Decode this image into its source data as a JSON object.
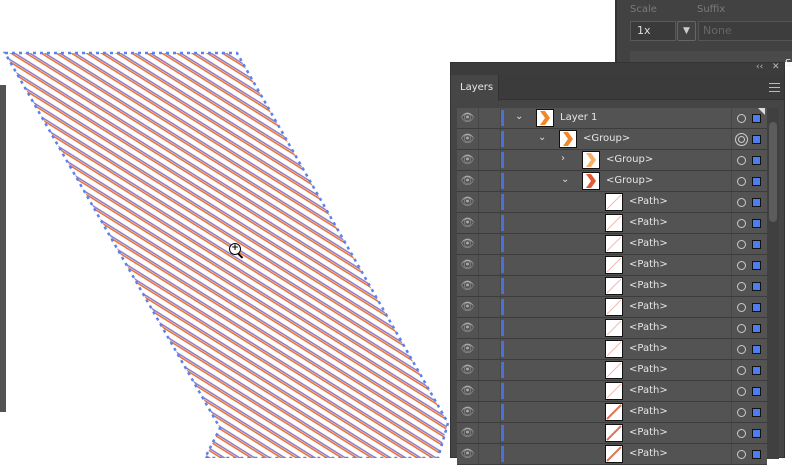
{
  "export_panel": {
    "scale_label": "Scale",
    "suffix_label": "Suffix",
    "scale_value": "1x",
    "suffix_placeholder": "None",
    "cutoff_label": "S"
  },
  "layers_panel": {
    "tab": "Layers",
    "collapse_icon": "double-chevron-left-icon",
    "close_icon": "close-icon",
    "rows": [
      {
        "name": "Layer 1",
        "indent": 0,
        "expanded": true,
        "thumb": "orange-chevron",
        "target": "single"
      },
      {
        "name": "<Group>",
        "indent": 1,
        "expanded": true,
        "thumb": "orange-chevron",
        "target": "double"
      },
      {
        "name": "<Group>",
        "indent": 2,
        "expanded": false,
        "thumb": "light-orange-chevron",
        "target": "single"
      },
      {
        "name": "<Group>",
        "indent": 2,
        "expanded": true,
        "thumb": "red-chevron",
        "target": "single"
      },
      {
        "name": "<Path>",
        "indent": 3,
        "thumb": "faint-line",
        "target": "single"
      },
      {
        "name": "<Path>",
        "indent": 3,
        "thumb": "faint-line",
        "target": "single"
      },
      {
        "name": "<Path>",
        "indent": 3,
        "thumb": "faint-line",
        "target": "single"
      },
      {
        "name": "<Path>",
        "indent": 3,
        "thumb": "faint-line",
        "target": "single"
      },
      {
        "name": "<Path>",
        "indent": 3,
        "thumb": "faint-line",
        "target": "single"
      },
      {
        "name": "<Path>",
        "indent": 3,
        "thumb": "faint-line",
        "target": "single"
      },
      {
        "name": "<Path>",
        "indent": 3,
        "thumb": "faint-line",
        "target": "single"
      },
      {
        "name": "<Path>",
        "indent": 3,
        "thumb": "faint-line",
        "target": "single"
      },
      {
        "name": "<Path>",
        "indent": 3,
        "thumb": "faint-line",
        "target": "single"
      },
      {
        "name": "<Path>",
        "indent": 3,
        "thumb": "faint-line",
        "target": "single"
      },
      {
        "name": "<Path>",
        "indent": 3,
        "thumb": "bold-line",
        "target": "single"
      },
      {
        "name": "<Path>",
        "indent": 3,
        "thumb": "bold-line",
        "target": "single"
      },
      {
        "name": "<Path>",
        "indent": 3,
        "thumb": "bold-line",
        "target": "single"
      }
    ]
  },
  "colors": {
    "stripe_a": "#e8743b",
    "stripe_b": "#8a78c8",
    "selection": "#4d7ef0",
    "layer_color": "#4d6fd8"
  }
}
